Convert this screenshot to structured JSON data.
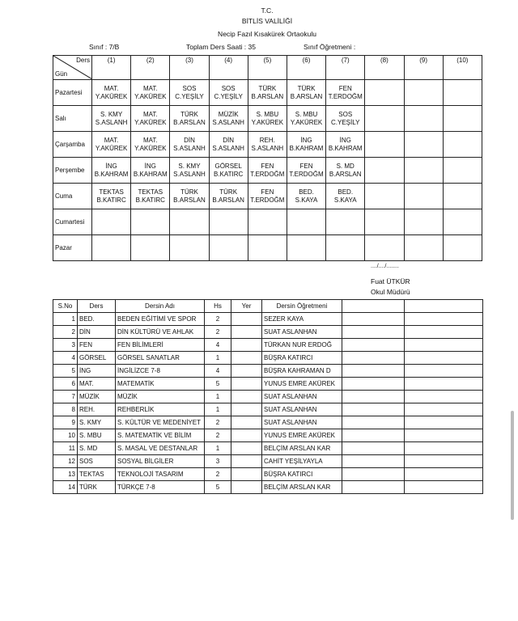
{
  "header": {
    "line1": "T.C.",
    "line2": "BİTLİS VALİLİĞİ",
    "school": "Necip Fazıl Kısakürek Ortaokulu",
    "class_label": "Sınıf : 7/B",
    "total_label": "Toplam Ders Saati : 35",
    "teacher_label": "Sınıf Öğretmeni :"
  },
  "schedule": {
    "corner_top": "Ders",
    "corner_bottom": "Gün",
    "columns": [
      "(1)",
      "(2)",
      "(3)",
      "(4)",
      "(5)",
      "(6)",
      "(7)",
      "(8)",
      "(9)",
      "(10)"
    ],
    "rows": [
      {
        "day": "Pazartesi",
        "cells": [
          [
            "MAT.",
            "Y.AKÜREK"
          ],
          [
            "MAT.",
            "Y.AKÜREK"
          ],
          [
            "SOS",
            "C.YEŞİLY"
          ],
          [
            "SOS",
            "C.YEŞİLY"
          ],
          [
            "TÜRK",
            "B.ARSLAN"
          ],
          [
            "TÜRK",
            "B.ARSLAN"
          ],
          [
            "FEN",
            "T.ERDOĞM"
          ]
        ]
      },
      {
        "day": "Salı",
        "cells": [
          [
            "S. KMY",
            "S.ASLANH"
          ],
          [
            "MAT.",
            "Y.AKÜREK"
          ],
          [
            "TÜRK",
            "B.ARSLAN"
          ],
          [
            "MÜZİK",
            "S.ASLANH"
          ],
          [
            "S. MBU",
            "Y.AKÜREK"
          ],
          [
            "S. MBU",
            "Y.AKÜREK"
          ],
          [
            "SOS",
            "C.YEŞİLY"
          ]
        ]
      },
      {
        "day": "Çarşamba",
        "cells": [
          [
            "MAT.",
            "Y.AKÜREK"
          ],
          [
            "MAT.",
            "Y.AKÜREK"
          ],
          [
            "DİN",
            "S.ASLANH"
          ],
          [
            "DİN",
            "S.ASLANH"
          ],
          [
            "REH.",
            "S.ASLANH"
          ],
          [
            "İNG",
            "B.KAHRAM"
          ],
          [
            "İNG",
            "B.KAHRAM"
          ]
        ]
      },
      {
        "day": "Perşembe",
        "cells": [
          [
            "İNG",
            "B.KAHRAM"
          ],
          [
            "İNG",
            "B.KAHRAM"
          ],
          [
            "S. KMY",
            "S.ASLANH"
          ],
          [
            "GÖRSEL",
            "B.KATIRC"
          ],
          [
            "FEN",
            "T.ERDOĞM"
          ],
          [
            "FEN",
            "T.ERDOĞM"
          ],
          [
            "S. MD",
            "B.ARSLAN"
          ]
        ]
      },
      {
        "day": "Cuma",
        "cells": [
          [
            "TEKTAS",
            "B.KATIRC"
          ],
          [
            "TEKTAS",
            "B.KATIRC"
          ],
          [
            "TÜRK",
            "B.ARSLAN"
          ],
          [
            "TÜRK",
            "B.ARSLAN"
          ],
          [
            "FEN",
            "T.ERDOĞM"
          ],
          [
            "BED.",
            "S.KAYA"
          ],
          [
            "BED.",
            "S.KAYA"
          ]
        ]
      },
      {
        "day": "Cumartesi",
        "cells": []
      },
      {
        "day": "Pazar",
        "cells": []
      }
    ]
  },
  "signature": {
    "date": "..../..../........",
    "name": "Fuat ÜTKÜR",
    "title": "Okul Müdürü"
  },
  "courses": {
    "headers": [
      "S.No",
      "Ders",
      "Dersin Adı",
      "Hs",
      "Yer",
      "Dersin Öğretmeni",
      "",
      ""
    ],
    "rows": [
      [
        "1",
        "BED.",
        "BEDEN EĞİTİMİ VE SPOR",
        "2",
        "",
        "SEZER KAYA"
      ],
      [
        "2",
        "DİN",
        "DİN KÜLTÜRÜ VE AHLAK",
        "2",
        "",
        "SUAT ASLANHAN"
      ],
      [
        "3",
        "FEN",
        "FEN BİLİMLERİ",
        "4",
        "",
        "TÜRKAN NUR ERDOĞ"
      ],
      [
        "4",
        "GÖRSEL",
        "GÖRSEL SANATLAR",
        "1",
        "",
        "BÜŞRA KATIRCI"
      ],
      [
        "5",
        "İNG",
        "İNGİLİZCE 7-8",
        "4",
        "",
        "BÜŞRA KAHRAMAN D"
      ],
      [
        "6",
        "MAT.",
        "MATEMATİK",
        "5",
        "",
        "YUNUS EMRE AKÜREK"
      ],
      [
        "7",
        "MÜZİK",
        "MÜZİK",
        "1",
        "",
        "SUAT ASLANHAN"
      ],
      [
        "8",
        "REH.",
        "REHBERLİK",
        "1",
        "",
        "SUAT ASLANHAN"
      ],
      [
        "9",
        "S. KMY",
        "S. KÜLTÜR VE MEDENİYET",
        "2",
        "",
        "SUAT ASLANHAN"
      ],
      [
        "10",
        "S. MBU",
        "S. MATEMATİK VE BİLİM",
        "2",
        "",
        "YUNUS EMRE AKÜREK"
      ],
      [
        "11",
        "S. MD",
        "S. MASAL VE DESTANLAR",
        "1",
        "",
        "BELÇİM ARSLAN KAR"
      ],
      [
        "12",
        "SOS",
        "SOSYAL BİLGİLER",
        "3",
        "",
        "CAHİT YEŞİLYAYLA"
      ],
      [
        "13",
        "TEKTAS",
        "TEKNOLOJİ TASARIM",
        "2",
        "",
        "BÜŞRA KATIRCI"
      ],
      [
        "14",
        "TÜRK",
        "TÜRKÇE 7-8",
        "5",
        "",
        "BELÇİM ARSLAN KAR"
      ]
    ]
  }
}
